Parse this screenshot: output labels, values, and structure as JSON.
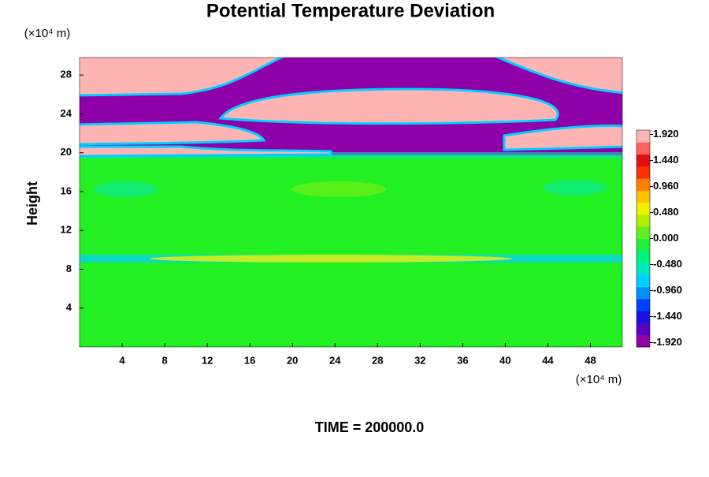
{
  "chart_data": {
    "type": "contour",
    "title": "Potential Temperature Deviation",
    "y_label": "Height",
    "y_unit": "(×10⁴ m)",
    "x_unit": "(×10⁴ m)",
    "footer": "TIME = 200000.0",
    "xlim": [
      0,
      51
    ],
    "xticks": [
      4,
      8,
      12,
      16,
      20,
      24,
      28,
      32,
      36,
      40,
      44,
      48
    ],
    "ylim": [
      0,
      29.8
    ],
    "yticks": [
      4,
      8,
      12,
      16,
      20,
      24,
      28
    ],
    "colorbar": {
      "lim": [
        -2.0,
        2.0
      ],
      "ticks": [
        {
          "value": -1.92,
          "label": "-1.920"
        },
        {
          "value": -1.44,
          "label": "-1.440"
        },
        {
          "value": -0.96,
          "label": "-0.960"
        },
        {
          "value": -0.48,
          "label": "-0.480"
        },
        {
          "value": 0,
          "label": "0.000"
        },
        {
          "value": 0.48,
          "label": "0.480"
        },
        {
          "value": 0.96,
          "label": "0.960"
        },
        {
          "value": 1.44,
          "label": "1.440"
        },
        {
          "value": 1.92,
          "label": "1.920"
        }
      ],
      "colors": [
        "#8e00a8",
        "#5a00c0",
        "#1a10e0",
        "#0040ff",
        "#0090ff",
        "#00d0ff",
        "#00e8c0",
        "#00f080",
        "#20f040",
        "#60f020",
        "#b0f000",
        "#f0f000",
        "#ffc000",
        "#ff8000",
        "#ff3000",
        "#e01010",
        "#ff6060",
        "#ffb4b4"
      ]
    }
  }
}
